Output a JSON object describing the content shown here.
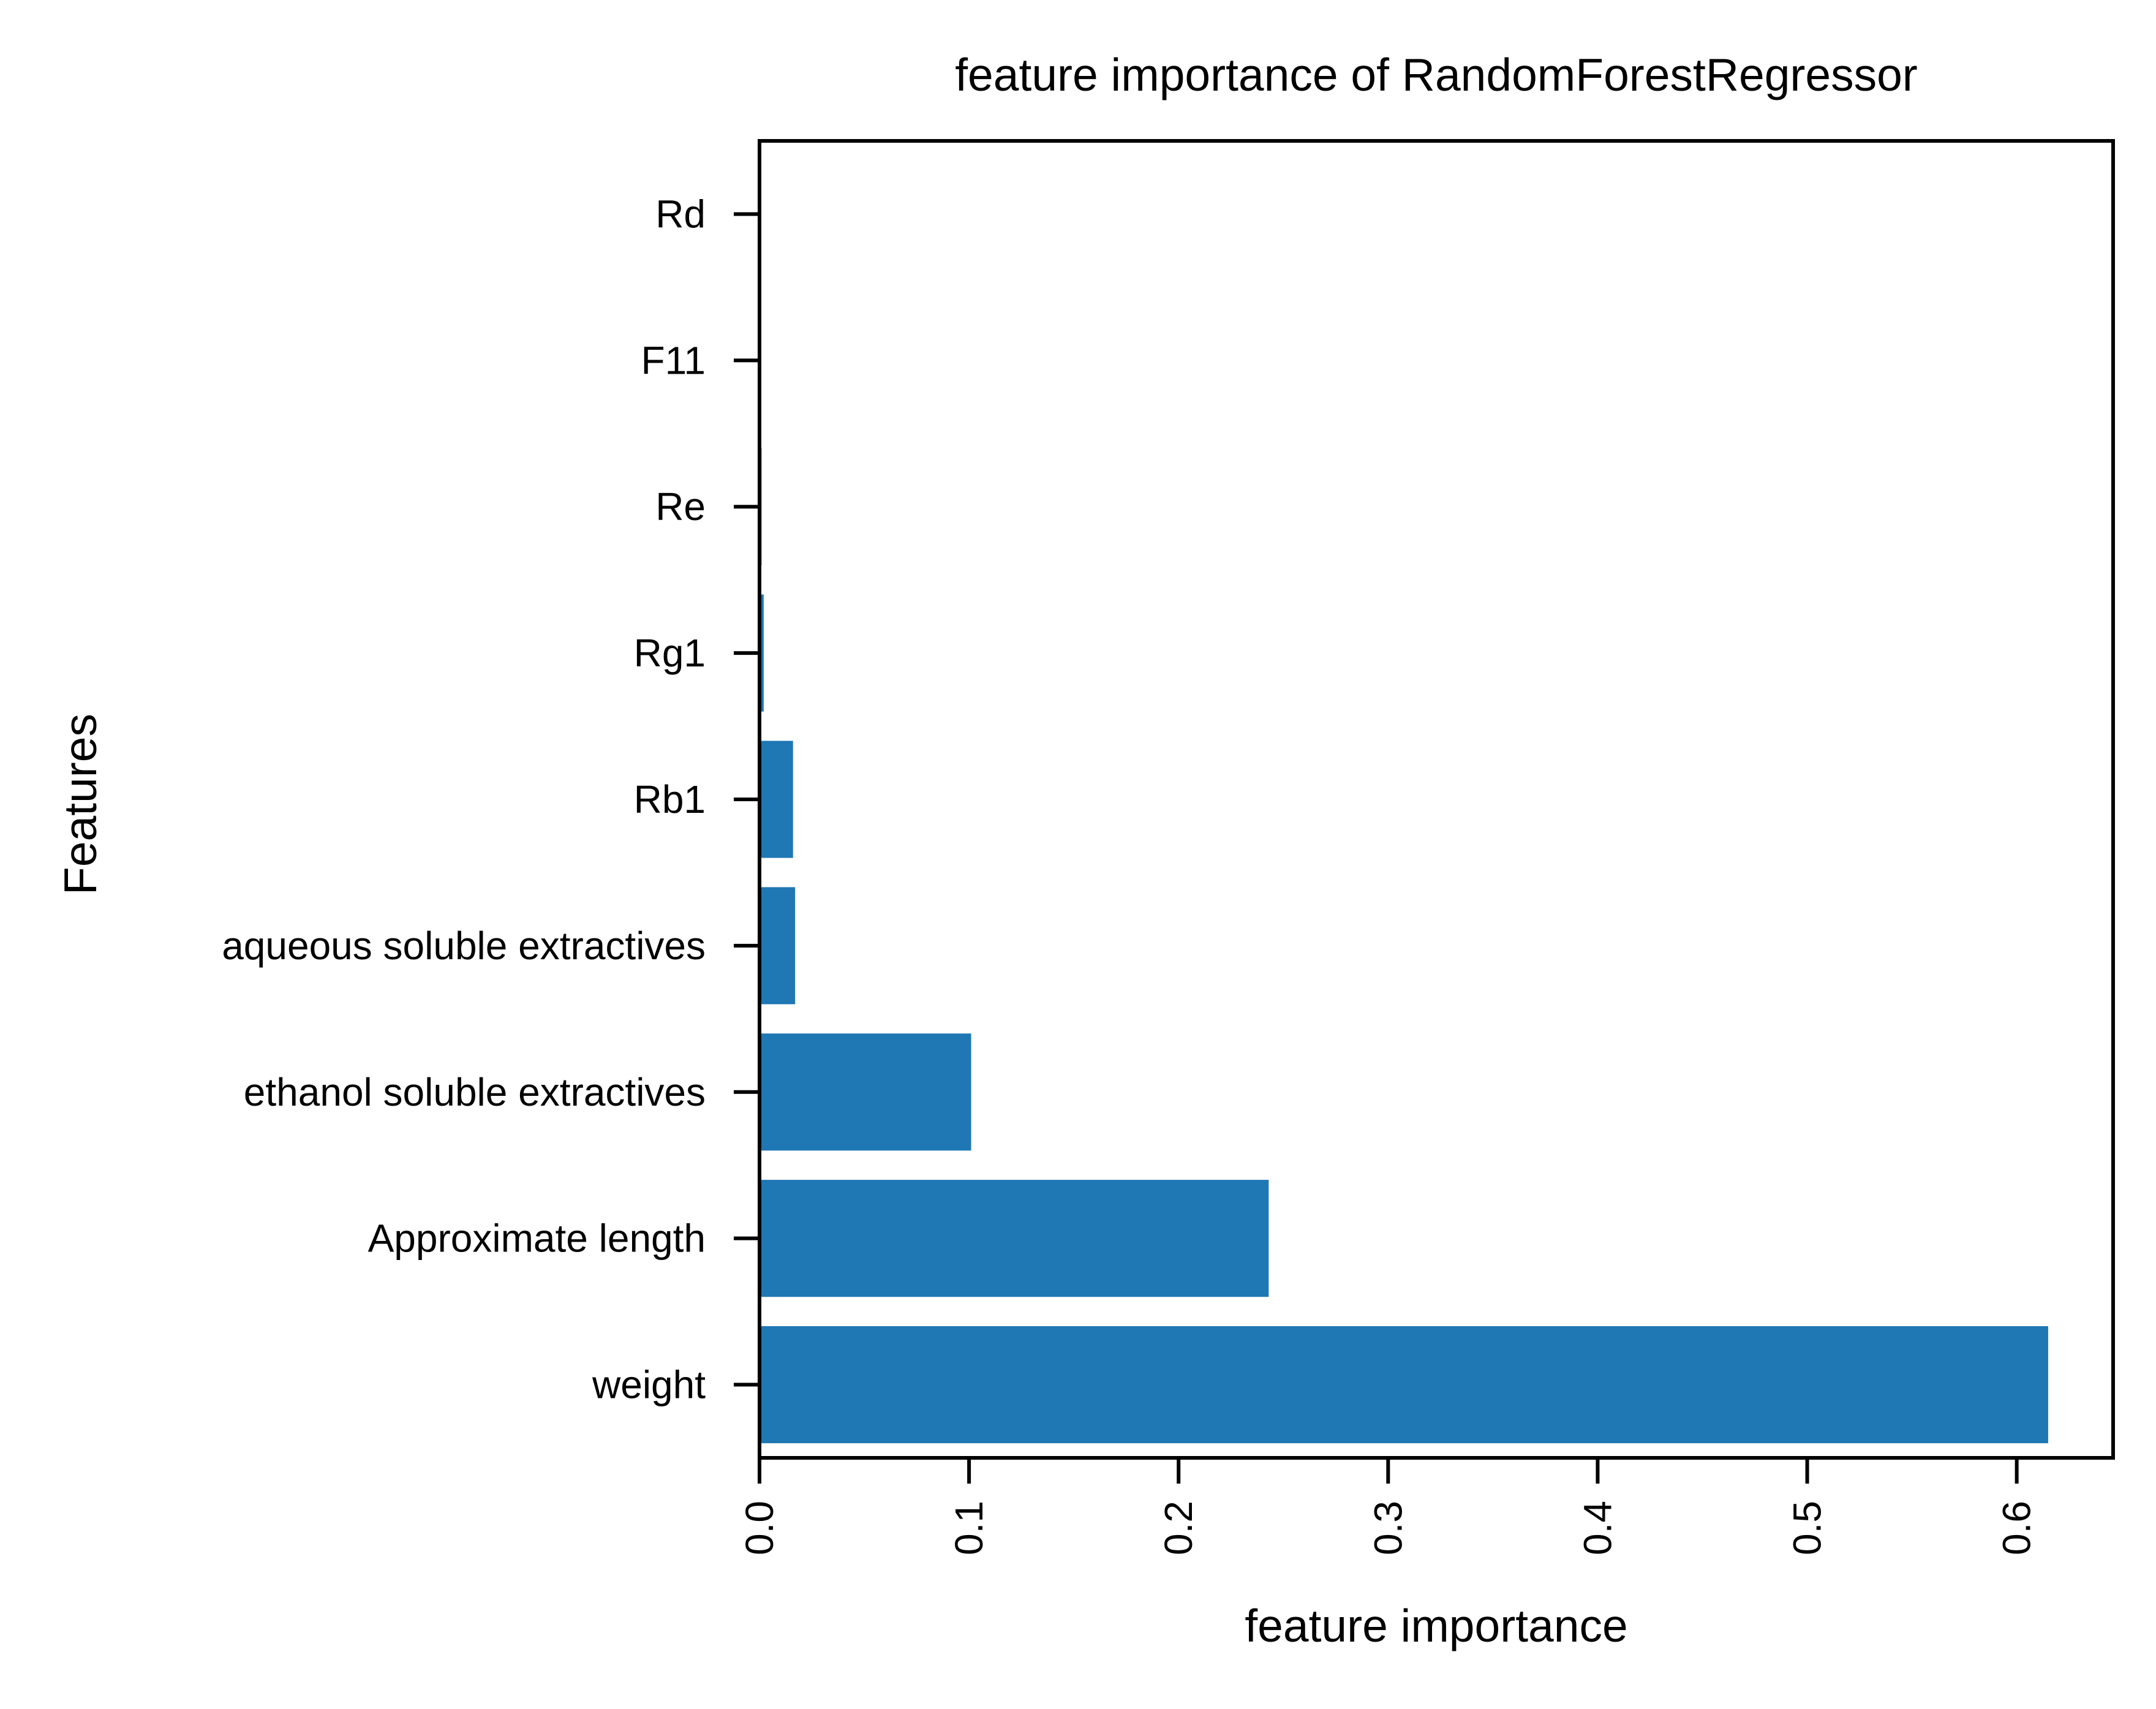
{
  "chart_data": {
    "type": "bar",
    "orientation": "horizontal",
    "title": "feature importance of RandomForestRegressor",
    "xlabel": "feature importance",
    "ylabel": "Features",
    "categories": [
      "weight",
      "Approximate length",
      "ethanol soluble extractives",
      "aqueous soluble extractives",
      "Rb1",
      "Rg1",
      "Re",
      "F11",
      "Rd"
    ],
    "values": [
      0.615,
      0.243,
      0.101,
      0.017,
      0.016,
      0.002,
      0.001,
      0.0003,
      0.0001
    ],
    "x_ticks": [
      "0.0",
      "0.1",
      "0.2",
      "0.3",
      "0.4",
      "0.5",
      "0.6"
    ],
    "xlim": [
      0,
      0.646
    ],
    "x_tick_rotation": "vertical",
    "grid": false,
    "legend": "none",
    "bar_color": "#1f77b4"
  }
}
